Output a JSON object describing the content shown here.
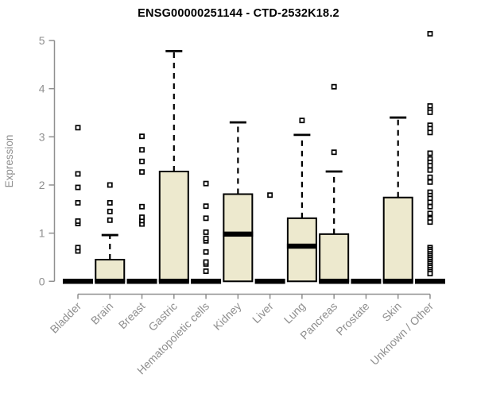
{
  "chart_data": {
    "type": "boxplot",
    "title": "ENSG00000251144 - CTD-2532K18.2",
    "ylabel": "Expression",
    "xlabel": "",
    "ylim": [
      0,
      5
    ],
    "yticks": [
      0,
      1,
      2,
      3,
      4,
      5
    ],
    "grid": false,
    "legend": "none",
    "categories": [
      "Bladder",
      "Brain",
      "Breast",
      "Gastric",
      "Hematopoietic cells",
      "Kidney",
      "Liver",
      "Lung",
      "Pancreas",
      "Prostate",
      "Skin",
      "Unknown / Other"
    ],
    "boxes": [
      {
        "category": "Bladder",
        "q1": 0,
        "median": 0,
        "q3": 0,
        "whisker_low": 0,
        "whisker_high": 0,
        "outliers": [
          0.63,
          0.7,
          1.2,
          1.25,
          1.63,
          1.95,
          2.23,
          3.19
        ]
      },
      {
        "category": "Brain",
        "q1": 0,
        "median": 0,
        "q3": 0.45,
        "whisker_low": 0,
        "whisker_high": 0.96,
        "outliers": [
          1.27,
          1.45,
          1.63,
          2.0
        ]
      },
      {
        "category": "Breast",
        "q1": 0,
        "median": 0,
        "q3": 0,
        "whisker_low": 0,
        "whisker_high": 0,
        "outliers": [
          1.19,
          1.26,
          1.33,
          1.55,
          2.27,
          2.49,
          2.73,
          3.01
        ]
      },
      {
        "category": "Gastric",
        "q1": 0,
        "median": 0,
        "q3": 2.28,
        "whisker_low": 0,
        "whisker_high": 4.78,
        "outliers": []
      },
      {
        "category": "Hematopoietic cells",
        "q1": 0,
        "median": 0,
        "q3": 0,
        "whisker_low": 0,
        "whisker_high": 0,
        "outliers": [
          0.21,
          0.36,
          0.4,
          0.61,
          0.84,
          0.89,
          1.02,
          1.31,
          1.56,
          2.03
        ]
      },
      {
        "category": "Kidney",
        "q1": 0,
        "median": 0.98,
        "q3": 1.81,
        "whisker_low": 0,
        "whisker_high": 3.3,
        "outliers": []
      },
      {
        "category": "Liver",
        "q1": 0,
        "median": 0,
        "q3": 0,
        "whisker_low": 0,
        "whisker_high": 0,
        "outliers": [
          1.79
        ]
      },
      {
        "category": "Lung",
        "q1": 0,
        "median": 0.73,
        "q3": 1.31,
        "whisker_low": 0,
        "whisker_high": 3.04,
        "outliers": [
          3.34
        ]
      },
      {
        "category": "Pancreas",
        "q1": 0,
        "median": 0,
        "q3": 0.98,
        "whisker_low": 0,
        "whisker_high": 2.28,
        "outliers": [
          2.68,
          4.04
        ]
      },
      {
        "category": "Prostate",
        "q1": 0,
        "median": 0,
        "q3": 0,
        "whisker_low": 0,
        "whisker_high": 0,
        "outliers": []
      },
      {
        "category": "Skin",
        "q1": 0,
        "median": 0,
        "q3": 1.74,
        "whisker_low": 0,
        "whisker_high": 3.4,
        "outliers": []
      },
      {
        "category": "Unknown / Other",
        "q1": 0,
        "median": 0,
        "q3": 0,
        "whisker_low": 0,
        "whisker_high": 0,
        "outliers": [
          5.14,
          3.64,
          3.56,
          3.51,
          3.24,
          3.17,
          3.09,
          2.66,
          2.54,
          2.47,
          2.4,
          2.31,
          2.16,
          2.06,
          1.85,
          1.78,
          1.72,
          1.64,
          1.55,
          1.41,
          1.3,
          1.23,
          0.7,
          0.66,
          0.62,
          0.57,
          0.53,
          0.49,
          0.45,
          0.41,
          0.37,
          0.33,
          0.29,
          0.24,
          0.2,
          0.16
        ]
      }
    ],
    "colors": {
      "box_fill": "#EDE9CE",
      "box_stroke": "#000000",
      "median": "#000000",
      "whisker": "#000000",
      "outlier_stroke": "#000000",
      "outlier_fill": "#ffffff",
      "axis": "#8F8F8F",
      "tick_label": "#8F8F8F",
      "category_label": "#8F8F8F",
      "title": "#000000",
      "background": "#ffffff"
    }
  }
}
